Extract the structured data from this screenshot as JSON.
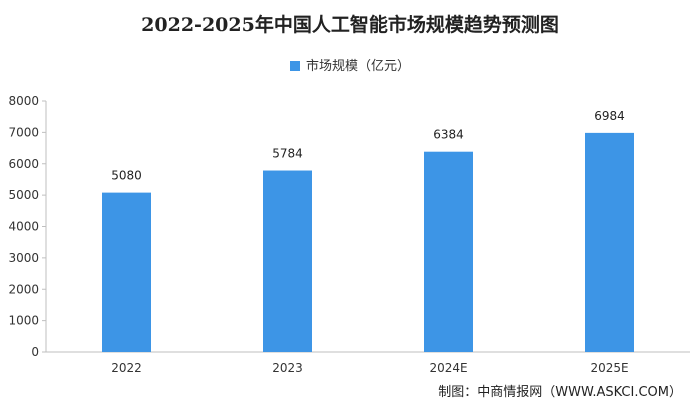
{
  "chart_data": {
    "type": "bar",
    "title": "2022-2025年中国人工智能市场规模趋势预测图",
    "categories": [
      "2022",
      "2023",
      "2024E",
      "2025E"
    ],
    "series": [
      {
        "name": "市场规模（亿元）",
        "values": [
          5080,
          5784,
          6384,
          6984
        ]
      }
    ],
    "value_labels": [
      "5080",
      "5784",
      "6384",
      "6984"
    ],
    "ylim": [
      0,
      8000
    ],
    "yticks": [
      0,
      1000,
      2000,
      3000,
      4000,
      5000,
      6000,
      7000,
      8000
    ],
    "grid": false,
    "legend_position": "top-center",
    "bar_color": "#3d95e6"
  },
  "source": "制图：中商情报网（WWW.ASKCI.COM）"
}
